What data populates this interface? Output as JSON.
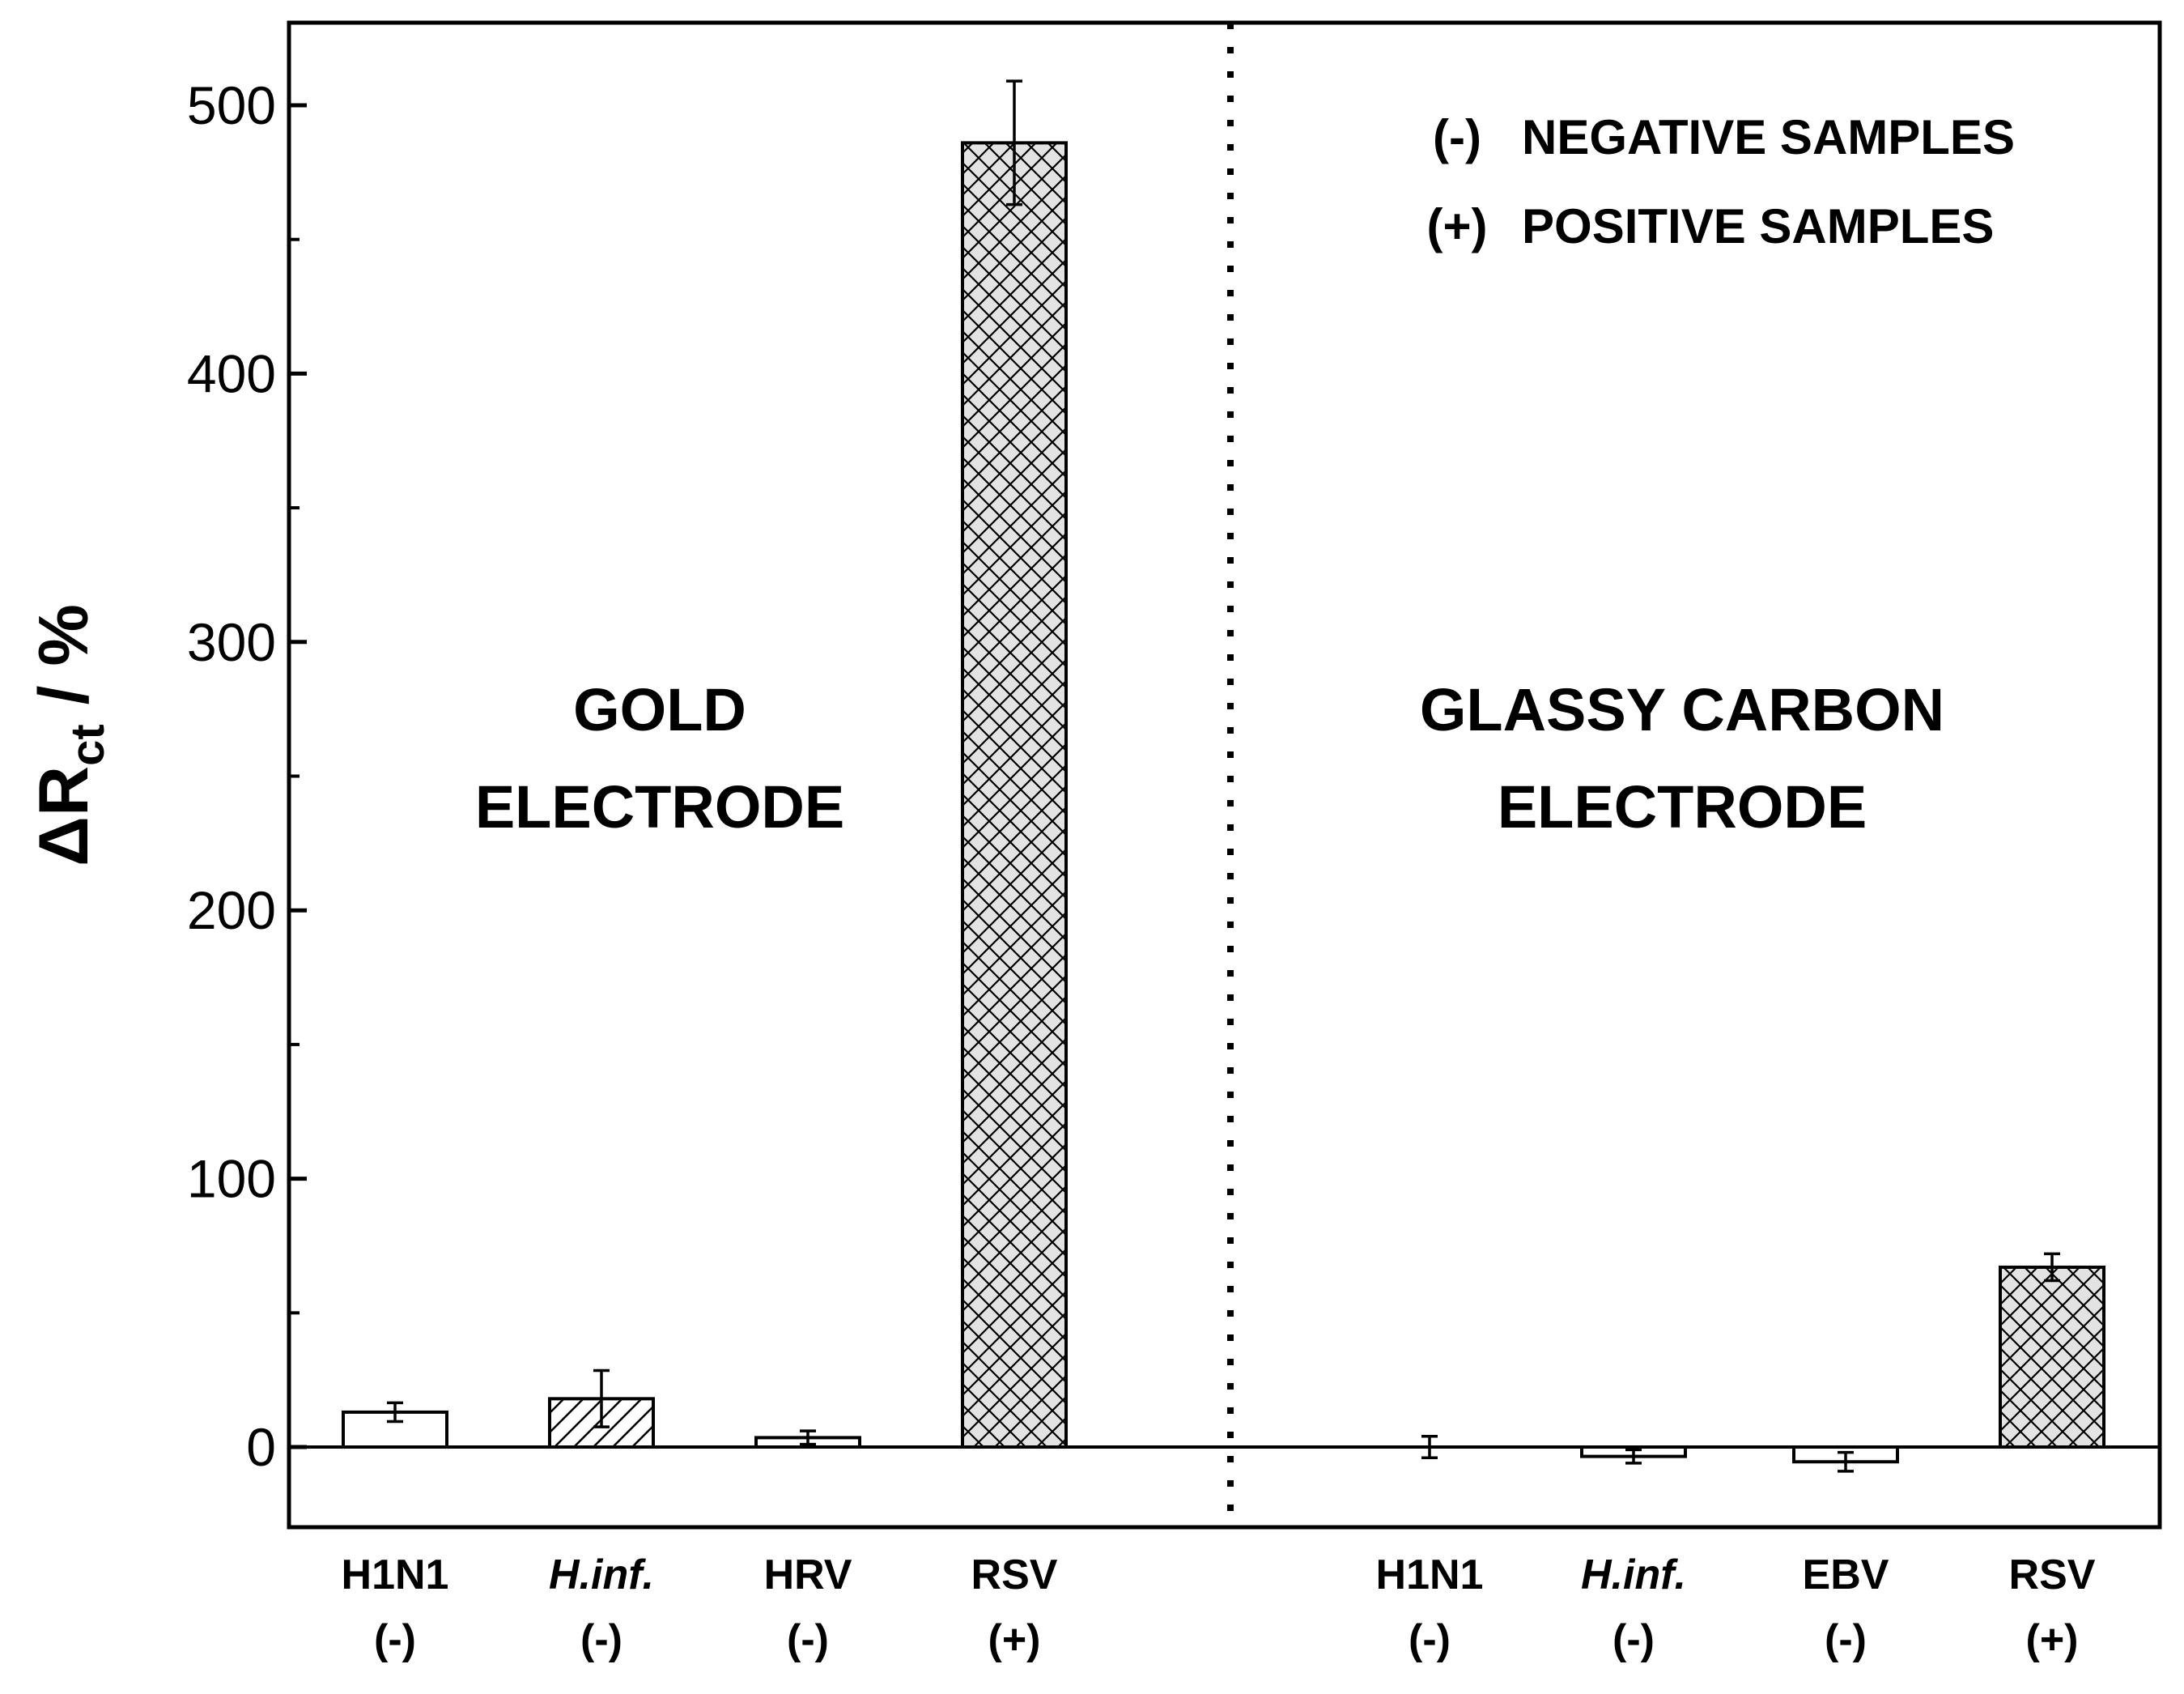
{
  "chart_data": {
    "type": "bar",
    "ylabel": "ΔR",
    "ylabel_subscript": "ct",
    "ylabel_suffix": " / %",
    "ylim": [
      -30,
      530
    ],
    "yticks": [
      0,
      100,
      200,
      300,
      400,
      500
    ],
    "ytick_labels": [
      "0",
      "100",
      "200",
      "300",
      "400",
      "500"
    ],
    "yminor_ticks": [
      50,
      150,
      250,
      350,
      450
    ],
    "groups": [
      {
        "name_line1": "GOLD",
        "name_line2": "ELECTRODE",
        "bars": [
          {
            "label": "H1N1",
            "sign": "(-)",
            "italic": false,
            "value": 13,
            "error": 3.5,
            "pattern": "empty"
          },
          {
            "label": "H.inf.",
            "sign": "(-)",
            "italic": true,
            "value": 18,
            "error": 10.5,
            "pattern": "hatch"
          },
          {
            "label": "HRV",
            "sign": "(-)",
            "italic": false,
            "value": 3.5,
            "error": 2.5,
            "pattern": "empty"
          },
          {
            "label": "RSV",
            "sign": "(+)",
            "italic": false,
            "value": 486,
            "error": 23,
            "pattern": "crosshatch"
          }
        ]
      },
      {
        "name_line1": "GLASSY CARBON",
        "name_line2": "ELECTRODE",
        "bars": [
          {
            "label": "H1N1",
            "sign": "(-)",
            "italic": false,
            "value": 0,
            "error": 4,
            "pattern": "empty"
          },
          {
            "label": "H.inf.",
            "sign": "(-)",
            "italic": true,
            "value": -3.5,
            "error": 2.5,
            "pattern": "empty"
          },
          {
            "label": "EBV",
            "sign": "(-)",
            "italic": false,
            "value": -5.5,
            "error": 3.5,
            "pattern": "empty"
          },
          {
            "label": "RSV",
            "sign": "(+)",
            "italic": false,
            "value": 67,
            "error": 5,
            "pattern": "crosshatch"
          }
        ]
      }
    ],
    "legend": [
      {
        "symbol": "(-)",
        "text": "NEGATIVE SAMPLES"
      },
      {
        "symbol": "(+)",
        "text": "POSITIVE SAMPLES"
      }
    ],
    "legend_position": "top-right"
  }
}
